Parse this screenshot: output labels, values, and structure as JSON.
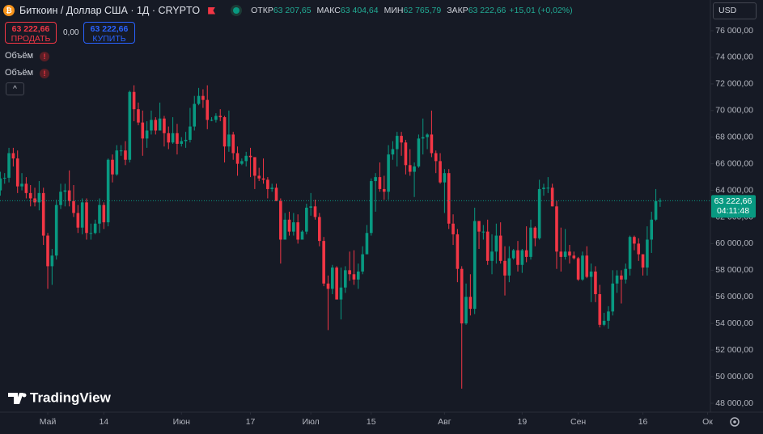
{
  "header": {
    "title": "Биткоин / Доллар США · 1Д · CRYPTO",
    "ohlc": [
      {
        "label": "ОТКР",
        "value": "63 207,65"
      },
      {
        "label": "МАКС",
        "value": "63 404,64"
      },
      {
        "label": "МИН",
        "value": "62 765,79"
      },
      {
        "label": "ЗАКР",
        "value": "63 222,66"
      }
    ],
    "change": "+15,01 (+0,02%)",
    "sell": {
      "price": "63 222,66",
      "label": "ПРОДАТЬ"
    },
    "spread": "0,00",
    "buy": {
      "price": "63 222,66",
      "label": "КУПИТЬ"
    },
    "indicators": [
      "Объём",
      "Объём"
    ],
    "currency": "USD",
    "logo": "TradingView"
  },
  "chart_data": {
    "type": "candlestick",
    "up_color": "#089981",
    "down_color": "#f23645",
    "grid": false,
    "ylim": [
      47330,
      78310
    ],
    "yticks": [
      {
        "value": 48000,
        "label": "48 000,00"
      },
      {
        "value": 50000,
        "label": "50 000,00"
      },
      {
        "value": 52000,
        "label": "52 000,00"
      },
      {
        "value": 54000,
        "label": "54 000,00"
      },
      {
        "value": 56000,
        "label": "56 000,00"
      },
      {
        "value": 58000,
        "label": "58 000,00"
      },
      {
        "value": 60000,
        "label": "60 000,00"
      },
      {
        "value": 62000,
        "label": "62 000,00"
      },
      {
        "value": 64000,
        "label": "64 000,00"
      },
      {
        "value": 66000,
        "label": "66 000,00"
      },
      {
        "value": 68000,
        "label": "68 000,00"
      },
      {
        "value": 70000,
        "label": "70 000,00"
      },
      {
        "value": 72000,
        "label": "72 000,00"
      },
      {
        "value": 74000,
        "label": "74 000,00"
      },
      {
        "value": 76000,
        "label": "76 000,00"
      }
    ],
    "xticks": [
      {
        "value": 11,
        "label": "Май"
      },
      {
        "value": 24,
        "label": "14"
      },
      {
        "value": 42,
        "label": "Июн"
      },
      {
        "value": 58,
        "label": "17"
      },
      {
        "value": 72,
        "label": "Июл"
      },
      {
        "value": 86,
        "label": "15"
      },
      {
        "value": 103,
        "label": "Авг"
      },
      {
        "value": 121,
        "label": "19"
      },
      {
        "value": 134,
        "label": "Сен"
      },
      {
        "value": 149,
        "label": "16"
      },
      {
        "value": 164,
        "label": "Ок"
      }
    ],
    "price_line": {
      "value": 63222.66,
      "label": "63 222,66",
      "countdown": "04:11:48"
    },
    "candles": [
      [
        64000,
        65400,
        63600,
        64900
      ],
      [
        64900,
        65300,
        64500,
        64950
      ],
      [
        64950,
        67200,
        64600,
        66800
      ],
      [
        66800,
        67200,
        65800,
        66400
      ],
      [
        66400,
        67000,
        63800,
        64300
      ],
      [
        64300,
        65300,
        64000,
        64500
      ],
      [
        64500,
        65000,
        63400,
        63800
      ],
      [
        63800,
        64400,
        62800,
        63400
      ],
      [
        63400,
        64200,
        62800,
        63100
      ],
      [
        63100,
        64700,
        62500,
        63800
      ],
      [
        63800,
        64200,
        59900,
        60600
      ],
      [
        60600,
        60800,
        56600,
        58300
      ],
      [
        58300,
        59600,
        56900,
        59100
      ],
      [
        59100,
        63300,
        58800,
        62900
      ],
      [
        62900,
        64500,
        62600,
        63900
      ],
      [
        63900,
        64500,
        62800,
        64000
      ],
      [
        64000,
        65500,
        62800,
        63200
      ],
      [
        63200,
        64400,
        62000,
        62300
      ],
      [
        62300,
        62900,
        60800,
        61200
      ],
      [
        61200,
        63400,
        60700,
        63100
      ],
      [
        63100,
        63400,
        60300,
        60800
      ],
      [
        60800,
        61500,
        60300,
        60800
      ],
      [
        60800,
        61800,
        60700,
        61500
      ],
      [
        61500,
        63400,
        60800,
        62900
      ],
      [
        62900,
        63100,
        61100,
        61600
      ],
      [
        61600,
        66400,
        61300,
        66300
      ],
      [
        66300,
        66700,
        64600,
        65200
      ],
      [
        65200,
        67400,
        65100,
        67000
      ],
      [
        67000,
        67400,
        66600,
        67000
      ],
      [
        67000,
        67700,
        65900,
        66300
      ],
      [
        66300,
        71500,
        66100,
        71400
      ],
      [
        71400,
        71900,
        69200,
        70100
      ],
      [
        70100,
        70600,
        68900,
        69100
      ],
      [
        69100,
        70000,
        66600,
        67900
      ],
      [
        67900,
        69200,
        67200,
        68500
      ],
      [
        68500,
        70000,
        68200,
        69300
      ],
      [
        69300,
        69500,
        68200,
        68500
      ],
      [
        68500,
        70600,
        68500,
        69400
      ],
      [
        69400,
        69600,
        67300,
        68300
      ],
      [
        68300,
        68800,
        67100,
        67600
      ],
      [
        67600,
        69500,
        67500,
        68300
      ],
      [
        68300,
        69000,
        66700,
        67500
      ],
      [
        67500,
        68000,
        67300,
        67700
      ],
      [
        67700,
        68400,
        67200,
        67800
      ],
      [
        67800,
        70200,
        67600,
        68800
      ],
      [
        68800,
        71100,
        68500,
        70500
      ],
      [
        70500,
        71700,
        70400,
        71100
      ],
      [
        71100,
        71600,
        70200,
        70800
      ],
      [
        70800,
        71900,
        68600,
        69300
      ],
      [
        69300,
        69500,
        69200,
        69300
      ],
      [
        69300,
        69800,
        69100,
        69600
      ],
      [
        69600,
        70100,
        69200,
        69500
      ],
      [
        69500,
        69600,
        66100,
        67300
      ],
      [
        67300,
        70000,
        66900,
        68200
      ],
      [
        68200,
        68400,
        66300,
        66800
      ],
      [
        66800,
        67300,
        65100,
        66000
      ],
      [
        66000,
        66400,
        65900,
        66200
      ],
      [
        66200,
        66900,
        65800,
        66600
      ],
      [
        66600,
        67200,
        65000,
        66500
      ],
      [
        66500,
        66500,
        64100,
        65100
      ],
      [
        65100,
        65700,
        64700,
        64900
      ],
      [
        64900,
        66400,
        64500,
        64800
      ],
      [
        64800,
        65000,
        63400,
        64100
      ],
      [
        64100,
        64500,
        63900,
        64200
      ],
      [
        64200,
        64500,
        63200,
        63200
      ],
      [
        63200,
        63400,
        58500,
        60300
      ],
      [
        60300,
        62300,
        60300,
        61800
      ],
      [
        61800,
        62400,
        60600,
        60900
      ],
      [
        60900,
        62300,
        60600,
        61600
      ],
      [
        61600,
        62200,
        60000,
        60300
      ],
      [
        60300,
        61000,
        60300,
        60900
      ],
      [
        60900,
        63000,
        60700,
        62700
      ],
      [
        62700,
        63800,
        62100,
        62800
      ],
      [
        62800,
        63300,
        61800,
        62000
      ],
      [
        62000,
        62300,
        59800,
        60200
      ],
      [
        60200,
        60500,
        56800,
        57000
      ],
      [
        57000,
        57600,
        53500,
        56600
      ],
      [
        56600,
        58400,
        56200,
        58200
      ],
      [
        58200,
        58300,
        55800,
        55800
      ],
      [
        55800,
        58200,
        54300,
        56700
      ],
      [
        56700,
        58300,
        56300,
        58000
      ],
      [
        58000,
        59400,
        57200,
        57700
      ],
      [
        57700,
        59500,
        56900,
        57300
      ],
      [
        57300,
        58500,
        56600,
        57900
      ],
      [
        57900,
        59800,
        57700,
        59200
      ],
      [
        59200,
        61400,
        59200,
        60800
      ],
      [
        60800,
        64900,
        60600,
        64700
      ],
      [
        64700,
        65300,
        62400,
        65000
      ],
      [
        65000,
        66100,
        63900,
        64100
      ],
      [
        64100,
        65100,
        63300,
        63900
      ],
      [
        63900,
        67400,
        63300,
        66700
      ],
      [
        66700,
        67700,
        66300,
        67100
      ],
      [
        67100,
        68400,
        65800,
        68100
      ],
      [
        68100,
        68400,
        66600,
        67600
      ],
      [
        67600,
        67800,
        65200,
        65900
      ],
      [
        65900,
        67100,
        65100,
        65400
      ],
      [
        65400,
        66100,
        63500,
        65800
      ],
      [
        65800,
        68200,
        65700,
        67900
      ],
      [
        67900,
        69400,
        66700,
        68000
      ],
      [
        68000,
        68300,
        67100,
        68200
      ],
      [
        68200,
        70000,
        66500,
        66800
      ],
      [
        66800,
        67000,
        65300,
        66200
      ],
      [
        66200,
        66800,
        64500,
        64600
      ],
      [
        64600,
        65600,
        62300,
        65300
      ],
      [
        65300,
        65600,
        61100,
        61500
      ],
      [
        61500,
        62200,
        59900,
        60700
      ],
      [
        60700,
        61100,
        57100,
        58100
      ],
      [
        58100,
        58300,
        49100,
        54000
      ],
      [
        54000,
        57000,
        53900,
        56000
      ],
      [
        56000,
        57700,
        54600,
        55100
      ],
      [
        55100,
        62700,
        54700,
        61700
      ],
      [
        61700,
        61700,
        59600,
        60900
      ],
      [
        60900,
        61400,
        60300,
        60900
      ],
      [
        60900,
        61800,
        58400,
        58700
      ],
      [
        58700,
        60700,
        57700,
        59400
      ],
      [
        59400,
        61500,
        58500,
        60600
      ],
      [
        60600,
        61600,
        58500,
        58700
      ],
      [
        58700,
        59800,
        56100,
        57600
      ],
      [
        57600,
        59800,
        57100,
        58900
      ],
      [
        58900,
        59600,
        58800,
        59500
      ],
      [
        59500,
        60200,
        57900,
        58400
      ],
      [
        58400,
        59600,
        57800,
        59500
      ],
      [
        59500,
        61300,
        58600,
        59000
      ],
      [
        59000,
        61800,
        58800,
        61200
      ],
      [
        61200,
        61300,
        59800,
        60400
      ],
      [
        60400,
        64800,
        60300,
        64100
      ],
      [
        64100,
        64500,
        63600,
        64200
      ],
      [
        64200,
        65000,
        63800,
        64200
      ],
      [
        64200,
        64500,
        62800,
        62800
      ],
      [
        62800,
        63200,
        58100,
        59400
      ],
      [
        59400,
        61200,
        57900,
        59000
      ],
      [
        59000,
        61100,
        58800,
        59400
      ],
      [
        59400,
        59900,
        58500,
        59100
      ],
      [
        59100,
        59400,
        58800,
        58900
      ],
      [
        58900,
        59000,
        57200,
        57300
      ],
      [
        57300,
        59400,
        57200,
        59100
      ],
      [
        59100,
        59800,
        57400,
        57500
      ],
      [
        57500,
        58500,
        55600,
        57900
      ],
      [
        57900,
        58300,
        55600,
        56200
      ],
      [
        56200,
        56900,
        53700,
        53900
      ],
      [
        53900,
        54800,
        53800,
        54200
      ],
      [
        54200,
        55300,
        53600,
        54900
      ],
      [
        54900,
        58000,
        54600,
        57000
      ],
      [
        57000,
        58000,
        56300,
        57600
      ],
      [
        57600,
        58000,
        55500,
        57300
      ],
      [
        57300,
        58500,
        57000,
        58100
      ],
      [
        58100,
        60600,
        57600,
        60500
      ],
      [
        60500,
        60600,
        59500,
        60000
      ],
      [
        60000,
        60400,
        58700,
        59200
      ],
      [
        59200,
        59200,
        57600,
        58200
      ],
      [
        58200,
        61300,
        57600,
        60300
      ],
      [
        60300,
        62400,
        59300,
        61800
      ],
      [
        61800,
        64100,
        61700,
        63207.65
      ],
      [
        63207.65,
        63404.64,
        62765.79,
        63222.66
      ]
    ]
  }
}
